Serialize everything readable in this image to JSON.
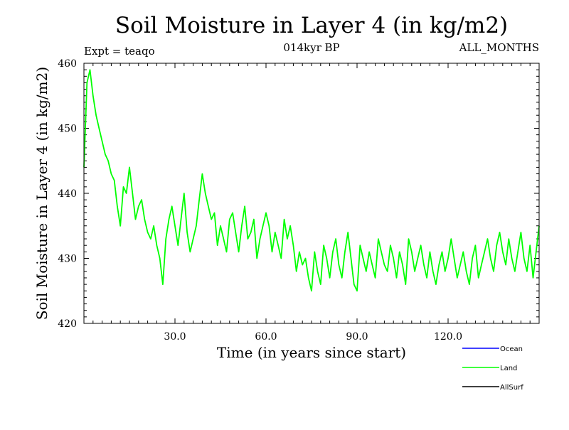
{
  "chart_data": {
    "type": "line",
    "title": "Soil Moisture in Layer 4 (in kg/m2)",
    "subtitle_left": "Expt = teaqo",
    "subtitle_center": "014kyr BP",
    "subtitle_right": "ALL_MONTHS",
    "xlabel": "Time (in years since start)",
    "ylabel": "Soil Moisture in Layer 4 (in kg/m2)",
    "xlim": [
      0,
      150
    ],
    "ylim": [
      420,
      460
    ],
    "x_ticks": [
      30,
      60,
      90,
      120
    ],
    "x_tick_labels": [
      "30.0",
      "60.0",
      "90.0",
      "120.0"
    ],
    "y_ticks": [
      420,
      430,
      440,
      450,
      460
    ],
    "y_tick_labels": [
      "420",
      "430",
      "440",
      "450",
      "460"
    ],
    "legend": [
      {
        "name": "Ocean",
        "color": "#0000ff"
      },
      {
        "name": "Land",
        "color": "#00ff00"
      },
      {
        "name": "AllSurf",
        "color": "#000000"
      }
    ],
    "series": [
      {
        "name": "Land",
        "color": "#00ff00",
        "x": [
          0,
          1,
          2,
          3,
          4,
          5,
          6,
          7,
          8,
          9,
          10,
          11,
          12,
          13,
          14,
          15,
          16,
          17,
          18,
          19,
          20,
          21,
          22,
          23,
          24,
          25,
          26,
          27,
          28,
          29,
          30,
          31,
          32,
          33,
          34,
          35,
          36,
          37,
          38,
          39,
          40,
          41,
          42,
          43,
          44,
          45,
          46,
          47,
          48,
          49,
          50,
          51,
          52,
          53,
          54,
          55,
          56,
          57,
          58,
          59,
          60,
          61,
          62,
          63,
          64,
          65,
          66,
          67,
          68,
          69,
          70,
          71,
          72,
          73,
          74,
          75,
          76,
          77,
          78,
          79,
          80,
          81,
          82,
          83,
          84,
          85,
          86,
          87,
          88,
          89,
          90,
          91,
          92,
          93,
          94,
          95,
          96,
          97,
          98,
          99,
          100,
          101,
          102,
          103,
          104,
          105,
          106,
          107,
          108,
          109,
          110,
          111,
          112,
          113,
          114,
          115,
          116,
          117,
          118,
          119,
          120,
          121,
          122,
          123,
          124,
          125,
          126,
          127,
          128,
          129,
          130,
          131,
          132,
          133,
          134,
          135,
          136,
          137,
          138,
          139,
          140,
          141,
          142,
          143,
          144,
          145,
          146,
          147,
          148,
          149,
          150
        ],
        "values": [
          444,
          457,
          459,
          455,
          452,
          450,
          448,
          446,
          445,
          443,
          442,
          438,
          435,
          441,
          440,
          444,
          440,
          436,
          438,
          439,
          436,
          434,
          433,
          435,
          432,
          430,
          426,
          433,
          436,
          438,
          435,
          432,
          436,
          440,
          434,
          431,
          433,
          435,
          439,
          443,
          440,
          438,
          436,
          437,
          432,
          435,
          433,
          431,
          436,
          437,
          434,
          431,
          435,
          438,
          433,
          434,
          436,
          430,
          433,
          435,
          437,
          435,
          431,
          434,
          432,
          430,
          436,
          433,
          435,
          432,
          428,
          431,
          429,
          430,
          427,
          425,
          431,
          428,
          426,
          432,
          430,
          427,
          431,
          433,
          429,
          427,
          431,
          434,
          430,
          426,
          425,
          432,
          430,
          428,
          431,
          429,
          427,
          433,
          431,
          429,
          428,
          432,
          430,
          427,
          431,
          429,
          426,
          433,
          431,
          428,
          430,
          432,
          429,
          427,
          431,
          428,
          426,
          429,
          431,
          428,
          430,
          433,
          430,
          427,
          429,
          431,
          428,
          426,
          430,
          432,
          427,
          429,
          431,
          433,
          430,
          428,
          432,
          434,
          431,
          429,
          433,
          430,
          428,
          431,
          434,
          430,
          428,
          432,
          427,
          431,
          435
        ]
      }
    ]
  }
}
